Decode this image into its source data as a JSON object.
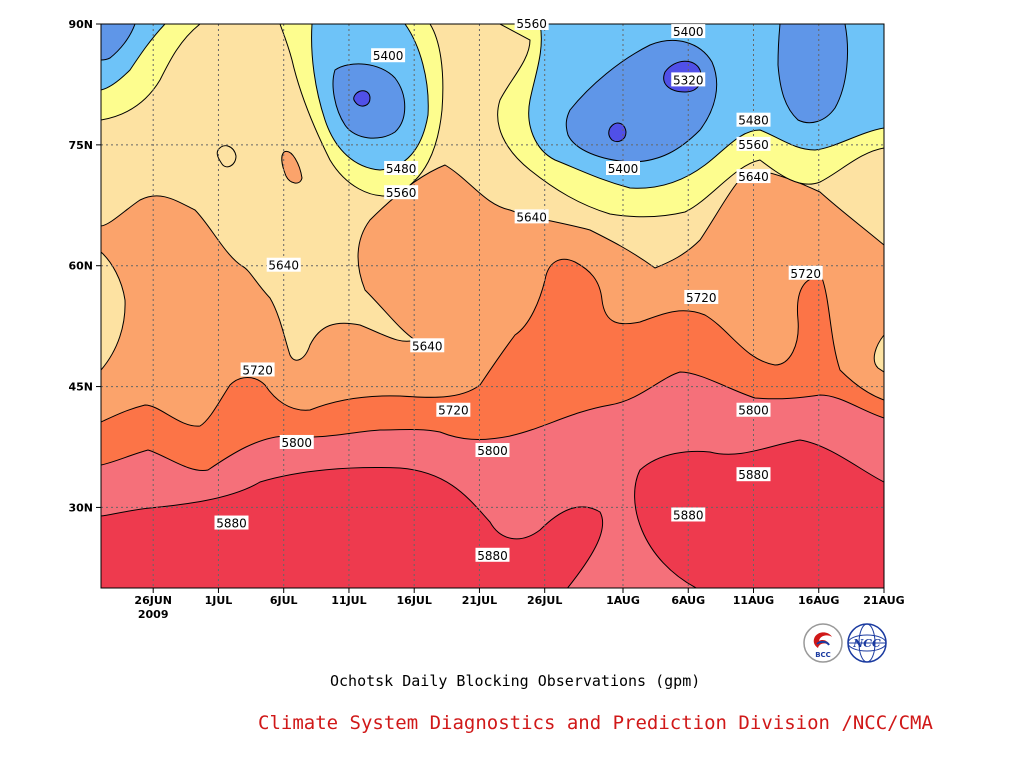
{
  "chart_data": {
    "type": "contour",
    "title": "Ochotsk Daily Blocking Observations (gpm)",
    "credit": "Climate System Diagnostics and Prediction Division /NCC/CMA",
    "x_ticks": [
      {
        "label": "26JUN",
        "sublabel": "2009",
        "date": "2009-06-26"
      },
      {
        "label": "1JUL",
        "date": "2009-07-01"
      },
      {
        "label": "6JUL",
        "date": "2009-07-06"
      },
      {
        "label": "11JUL",
        "date": "2009-07-11"
      },
      {
        "label": "16JUL",
        "date": "2009-07-16"
      },
      {
        "label": "21JUL",
        "date": "2009-07-21"
      },
      {
        "label": "26JUL",
        "date": "2009-07-26"
      },
      {
        "label": "1AUG",
        "date": "2009-08-01"
      },
      {
        "label": "6AUG",
        "date": "2009-08-06"
      },
      {
        "label": "11AUG",
        "date": "2009-08-11"
      },
      {
        "label": "16AUG",
        "date": "2009-08-16"
      },
      {
        "label": "21AUG",
        "date": "2009-08-21"
      }
    ],
    "y_ticks": [
      {
        "label": "30N",
        "value": 30
      },
      {
        "label": "45N",
        "value": 45
      },
      {
        "label": "60N",
        "value": 60
      },
      {
        "label": "75N",
        "value": 75
      },
      {
        "label": "90N",
        "value": 90
      }
    ],
    "ylim": [
      20,
      90
    ],
    "grid": true,
    "contour_levels": [
      5320,
      5400,
      5480,
      5560,
      5640,
      5720,
      5800,
      5880
    ],
    "fill_colors": {
      "below_5320": "#5050e8",
      "5320_5400": "#5f96e8",
      "5400_5480": "#6ec3f8",
      "5480_5560": "#fdfd8e",
      "5560_5640": "#fde2a2",
      "5640_5720": "#fba36b",
      "5720_5800": "#fc7447",
      "5800_5880": "#f5707a",
      "above_5880": "#ee3a4e"
    },
    "contour_labels": [
      {
        "text": "5560",
        "date": "2009-07-25",
        "lat": 90
      },
      {
        "text": "5400",
        "date": "2009-08-06",
        "lat": 89
      },
      {
        "text": "5400",
        "date": "2009-07-14",
        "lat": 86
      },
      {
        "text": "5320",
        "date": "2009-08-06",
        "lat": 83
      },
      {
        "text": "5480",
        "date": "2009-08-11",
        "lat": 78
      },
      {
        "text": "5560",
        "date": "2009-08-11",
        "lat": 75
      },
      {
        "text": "5480",
        "date": "2009-07-15",
        "lat": 72
      },
      {
        "text": "5400",
        "date": "2009-08-01",
        "lat": 72
      },
      {
        "text": "5640",
        "date": "2009-08-11",
        "lat": 71
      },
      {
        "text": "5560",
        "date": "2009-07-15",
        "lat": 69
      },
      {
        "text": "5640",
        "date": "2009-07-25",
        "lat": 66
      },
      {
        "text": "5640",
        "date": "2009-07-06",
        "lat": 60
      },
      {
        "text": "5720",
        "date": "2009-08-15",
        "lat": 59
      },
      {
        "text": "5720",
        "date": "2009-08-07",
        "lat": 56
      },
      {
        "text": "5640",
        "date": "2009-07-17",
        "lat": 50
      },
      {
        "text": "5720",
        "date": "2009-07-04",
        "lat": 47
      },
      {
        "text": "5800",
        "date": "2009-08-11",
        "lat": 42
      },
      {
        "text": "5720",
        "date": "2009-07-19",
        "lat": 42
      },
      {
        "text": "5800",
        "date": "2009-07-07",
        "lat": 38
      },
      {
        "text": "5800",
        "date": "2009-07-22",
        "lat": 37
      },
      {
        "text": "5880",
        "date": "2009-08-11",
        "lat": 34
      },
      {
        "text": "5880",
        "date": "2009-08-06",
        "lat": 29
      },
      {
        "text": "5880",
        "date": "2009-07-02",
        "lat": 28
      },
      {
        "text": "5880",
        "date": "2009-07-22",
        "lat": 24
      }
    ]
  },
  "logos": {
    "bcc_text": "BCC",
    "ncc_text": "NCC"
  }
}
